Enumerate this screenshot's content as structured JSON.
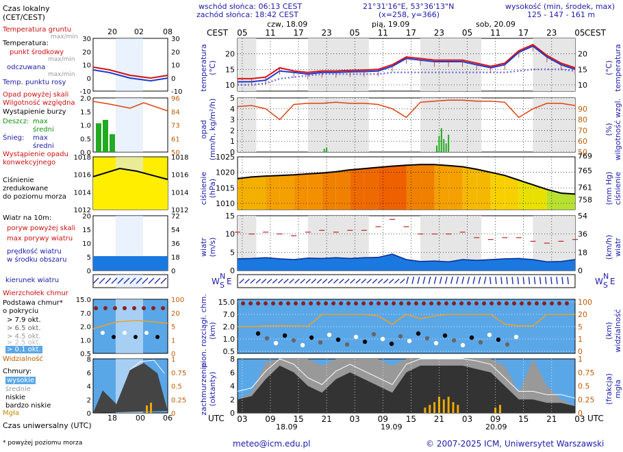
{
  "header": {
    "sunrise": "wschód słońca: 06:13 CEST",
    "sunset": "zachód słońca: 18:42 CEST",
    "coords": "21°31'16\"E, 53°36'13\"N",
    "grid": "(x=258, y=366)",
    "height_title": "wysokość (min, środek, max)",
    "height_values": "125 - 147 - 161 m"
  },
  "days": [
    "czw, 18.09",
    "pią, 19.09",
    "sob, 20.09"
  ],
  "timezone_top": "CEST",
  "timezone_bottom": "UTC",
  "top_ticks": [
    "05",
    "11",
    "17",
    "23",
    "05",
    "11",
    "17",
    "23",
    "05",
    "11",
    "17",
    "23",
    "05"
  ],
  "bottom_ticks": [
    "03",
    "09",
    "15",
    "21",
    "03",
    "09",
    "15",
    "21",
    "03",
    "09",
    "15",
    "21",
    "03"
  ],
  "bottom_dates": [
    "18.09",
    "19.09",
    "20.09"
  ],
  "legend": {
    "local_time": "Czas lokalny",
    "local_time2": "(CET/CEST)",
    "local_ticks": [
      "20",
      "02",
      "08"
    ],
    "soil_temp": "Temperatura gruntu",
    "soil_temp2": "max/min",
    "temperature": "Temperatura:",
    "mid_point": "punkt środkowy",
    "max_min": "max/min",
    "perceived": "odczuwana",
    "max_min2": "max/min",
    "dew_point": "Temp. punktu rosy",
    "precip_above": "Opad powyżej skali",
    "humidity": "Wilgotność względna",
    "storm": "Wystąpienie burzy",
    "rain": "Deszcz:",
    "rain_max": "max",
    "rain_mean": "średni",
    "snow": "Śnieg:",
    "snow_max": "max",
    "snow_mean": "średni",
    "precip_occ": "Wystąpienie opadu",
    "precip_occ2": "konwekcyjnego",
    "pressure": "Ciśnienie",
    "pressure2": "zredukowane",
    "pressure3": "do poziomu morza",
    "wind": "Wiatr na 10m:",
    "gust_above": "poryw powyżej skali",
    "gust_max": "max porywy wiatru",
    "wind_speed": "prędkość wiatru",
    "wind_speed2": "w środku obszaru",
    "wind_dir": "kierunek wiatru",
    "cloud_top": "Wierzchołek chmur",
    "cloud_base": "Podstawa chmur*",
    "cloud_base2": "o pokryciu",
    "okt1": "> 7.9 okt.",
    "okt2": "> 6.5 okt.",
    "okt3": "> 4.5 okt.",
    "okt4": "> 2.5 okt.",
    "okt5": "> 0.1 okt.",
    "visibility": "Widzialność",
    "clouds": "Chmury:",
    "high": "wysokie",
    "mid": "średnie",
    "low": "niskie",
    "very_low": "bardzo niskie",
    "fog": "Mgła",
    "utc": "Czas uniwersalny (UTC)",
    "utc_ticks": [
      "18",
      "00",
      "06"
    ],
    "footnote": "* powyżej poziomu morza"
  },
  "axis_labels": {
    "temp_l": "temperatura",
    "temp_l2": "(°C)",
    "temp_r": "temperatura",
    "temp_r2": "(°C)",
    "precip_l": "opad",
    "precip_l2": "(mm/h, kg/m²/h)",
    "hum_r": "wilgotność wzgl.",
    "hum_r2": "(%)",
    "press_l": "ciśnienie",
    "press_l2": "(hPa)",
    "press_r": "ciśnienie",
    "press_r2": "(mm Hg)",
    "wind_l": "wiatr",
    "wind_l2": "(m/s)",
    "wind_r": "wiatr",
    "wind_r2": "(km/h)",
    "cloud_l": "pion. rozciągł. chm.",
    "cloud_l2": "(km)",
    "vis_r": "widzialność",
    "vis_r2": "(km)",
    "cover_l": "zachmurzenie",
    "cover_l2": "(oktanty)",
    "fog_r": "mgła",
    "fog_r2": "(frakcja)",
    "compass": "N",
    "compass_w": "W",
    "compass_e": "E",
    "compass_s": "S"
  },
  "footer": {
    "email": "meteo@icm.edu.pl",
    "copyright": "© 2007-2025 ICM, Uniwersytet Warszawski"
  },
  "chart_data": [
    {
      "type": "line",
      "title": "temperatura",
      "ylabel": "temperatura (°C)",
      "ylim": [
        8,
        25
      ],
      "yticks": [
        10,
        15,
        20
      ],
      "x_hours": [
        0,
        3,
        6,
        9,
        12,
        15,
        18,
        21,
        24,
        27,
        30,
        33,
        36,
        39,
        42,
        45,
        48,
        51,
        54,
        57,
        60,
        63,
        66,
        69,
        72
      ],
      "series": [
        {
          "name": "punkt środkowy",
          "color": "#dd1010",
          "values": [
            12,
            12,
            12.5,
            15.5,
            14.5,
            14,
            14.5,
            14.5,
            14.7,
            14.8,
            15,
            16.5,
            19,
            18.5,
            18,
            18,
            18,
            17,
            16,
            17,
            21,
            23,
            19.5,
            17,
            15.5
          ]
        },
        {
          "name": "odczuwana",
          "color": "#1a3ad0",
          "values": [
            11,
            11,
            11.5,
            14.5,
            14,
            13.5,
            14,
            14,
            14.2,
            14.3,
            14.5,
            16,
            18.5,
            18,
            17.5,
            17.5,
            17.5,
            16.5,
            15.5,
            16.5,
            20.5,
            22.5,
            19,
            16.5,
            15
          ]
        },
        {
          "name": "Temp. punktu rosy",
          "color": "#7070e0",
          "values": [
            10,
            10,
            10.5,
            12,
            12.5,
            13,
            13.5,
            13.5,
            13.5,
            13.5,
            13.5,
            14,
            14,
            14,
            14,
            14,
            14,
            14,
            14,
            14,
            14.5,
            15,
            15,
            15,
            14.5
          ]
        }
      ]
    },
    {
      "type": "bar",
      "title": "opad",
      "ylabel": "opad (mm/h, kg/m²/h)",
      "ylim": [
        0,
        5
      ],
      "yticks": [
        0,
        1,
        2,
        3,
        4,
        5
      ],
      "y2label": "wilgotność wzgl. (%)",
      "y2ticks": [
        50,
        60,
        70,
        80,
        90
      ],
      "humidity_hours": [
        0,
        3,
        6,
        9,
        12,
        15,
        18,
        21,
        24,
        27,
        30,
        33,
        36,
        39,
        42,
        45,
        48,
        51,
        54,
        57,
        60,
        63,
        66,
        69,
        72
      ],
      "humidity": [
        92,
        93,
        90,
        80,
        94,
        95,
        95,
        96,
        95,
        95,
        94,
        90,
        82,
        96,
        97,
        98,
        98,
        97,
        97,
        96,
        82,
        90,
        95,
        95,
        93
      ],
      "rain_hours": [
        18.5,
        19,
        42.5,
        43,
        43.5,
        44,
        44.5,
        45
      ],
      "rain_values": [
        0.3,
        0.4,
        0.6,
        1.5,
        2.2,
        1.2,
        0.8,
        1.6
      ]
    },
    {
      "type": "area",
      "title": "ciśnienie",
      "ylabel": "ciśnienie (hPa)",
      "ylim": [
        1008,
        1025
      ],
      "yticks": [
        1010,
        1015,
        1020,
        1025
      ],
      "y2label": "ciśnienie (mm Hg)",
      "y2ticks": [
        758,
        761,
        765,
        769
      ],
      "x_hours": [
        0,
        3,
        6,
        9,
        12,
        15,
        18,
        21,
        24,
        27,
        30,
        33,
        36,
        39,
        42,
        45,
        48,
        51,
        54,
        57,
        60,
        63,
        66,
        69,
        72
      ],
      "values": [
        1018,
        1018.5,
        1018.8,
        1019,
        1019.2,
        1019.5,
        1019.8,
        1020.2,
        1020.8,
        1021.2,
        1021.6,
        1022,
        1022.3,
        1022.5,
        1022.5,
        1022.2,
        1021.8,
        1021,
        1020,
        1019,
        1017.5,
        1016,
        1014.5,
        1013.3,
        1013
      ]
    },
    {
      "type": "area",
      "title": "wiatr",
      "ylabel": "wiatr (m/s)",
      "ylim": [
        0,
        15
      ],
      "yticks": [
        0,
        5,
        10,
        15
      ],
      "y2label": "wiatr (km/h)",
      "y2ticks": [
        18,
        36,
        54
      ],
      "x_hours": [
        0,
        3,
        6,
        9,
        12,
        15,
        18,
        21,
        24,
        27,
        30,
        33,
        36,
        39,
        42,
        45,
        48,
        51,
        54,
        57,
        60,
        63,
        66,
        69,
        72
      ],
      "speed": [
        3.2,
        3.3,
        3.5,
        3.2,
        3.0,
        3.4,
        3.3,
        3.5,
        3.3,
        3.5,
        3.6,
        4.5,
        3.0,
        2.5,
        2.6,
        2.4,
        3.0,
        2.8,
        3.0,
        3.2,
        3.3,
        3.0,
        2.4,
        2.5,
        3.0
      ],
      "gust": [
        10.5,
        10,
        10.5,
        10,
        9.5,
        10.5,
        11,
        10.5,
        11,
        11,
        12,
        14,
        12,
        10,
        10,
        10,
        10.5,
        9,
        8.5,
        9,
        9,
        8,
        7.5,
        8,
        8.5
      ]
    },
    {
      "type": "line",
      "title": "pion. rozciągł. chm.",
      "ylabel": "pion. rozciągł. chm. (km)",
      "yticks": [
        0.5,
        1.0,
        2.0,
        7.0,
        15.0
      ],
      "y2label": "widzialność (km)",
      "y2ticks": [
        0,
        1,
        5,
        20,
        100
      ],
      "x_hours": [
        0,
        3,
        6,
        9,
        12,
        15,
        18,
        21,
        24,
        27,
        30,
        33,
        36,
        39,
        42,
        45,
        48,
        51,
        54,
        57,
        60,
        63,
        66,
        69,
        72
      ],
      "visibility": [
        5,
        5,
        6,
        6,
        6,
        5.5,
        20,
        20,
        20,
        20,
        18,
        8,
        20,
        15,
        18,
        20,
        20,
        20,
        20,
        8,
        6,
        6,
        20,
        20,
        20
      ]
    },
    {
      "type": "area",
      "title": "zachmurzenie",
      "ylabel": "zachmurzenie (oktanty)",
      "ylim": [
        0,
        8
      ],
      "yticks": [
        0,
        2,
        4,
        6,
        8
      ],
      "y2label": "mgła (frakcja)",
      "y2ticks": [
        0,
        0.25,
        0.5,
        0.75,
        1
      ],
      "x_hours": [
        0,
        3,
        6,
        9,
        12,
        15,
        18,
        21,
        24,
        27,
        30,
        33,
        36,
        39,
        42,
        45,
        48,
        51,
        54,
        57,
        60,
        63,
        66,
        69,
        72
      ],
      "high": [
        2,
        3,
        7.5,
        8,
        8,
        8,
        7,
        8,
        8,
        8,
        8,
        7,
        8,
        8,
        8,
        8,
        8,
        8,
        8,
        7,
        3,
        8,
        4,
        2,
        1
      ],
      "low": [
        2,
        2.5,
        5,
        7,
        6,
        4,
        3,
        5,
        6,
        5,
        4,
        3,
        6,
        7,
        7,
        7,
        7,
        6.5,
        6,
        4,
        2,
        2,
        1.5,
        1.5,
        1
      ],
      "fog_hours": [
        40,
        41,
        42,
        43,
        44,
        45,
        46,
        47,
        55,
        56
      ],
      "fog_values": [
        0.1,
        0.15,
        0.2,
        0.3,
        0.25,
        0.3,
        0.2,
        0.15,
        0.1,
        0.15
      ]
    }
  ]
}
